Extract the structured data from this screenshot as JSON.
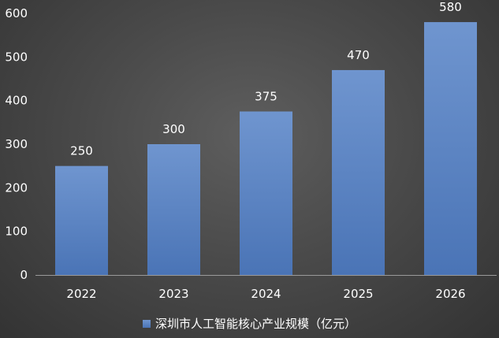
{
  "chart_data": {
    "type": "bar",
    "title": "",
    "xlabel": "",
    "ylabel": "",
    "categories": [
      "2022",
      "2023",
      "2024",
      "2025",
      "2026"
    ],
    "series": [
      {
        "name": "深圳市人工智能核心产业规模（亿元）",
        "values": [
          250,
          300,
          375,
          470,
          580
        ]
      }
    ],
    "data_labels": [
      "250",
      "300",
      "375",
      "470",
      "580"
    ],
    "ylim": [
      0,
      600
    ],
    "yticks": [
      "0",
      "100",
      "200",
      "300",
      "400",
      "500",
      "600"
    ],
    "grid": false,
    "legend_position": "bottom",
    "colors": {
      "bar_top": "#6f95cf",
      "bar_bottom": "#4a74b6",
      "background": "#4a4a4a",
      "text": "#ffffff"
    }
  }
}
